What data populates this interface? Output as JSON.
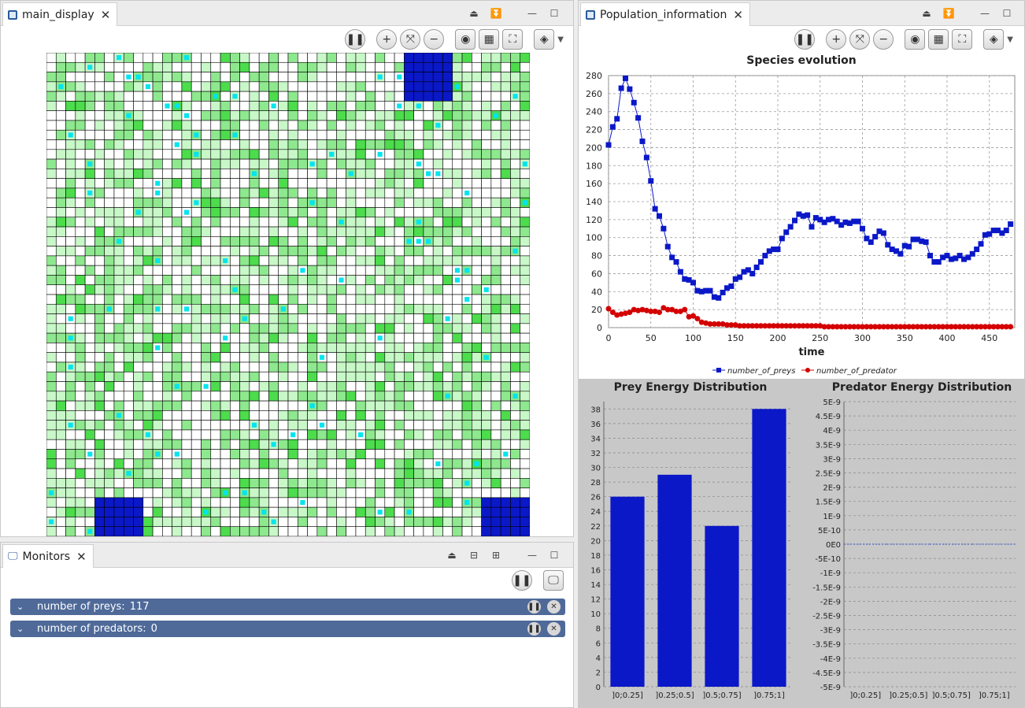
{
  "main_display": {
    "tab_label": "main_display",
    "grid": {
      "rows": 50,
      "cols": 50
    }
  },
  "population": {
    "tab_label": "Population_information"
  },
  "monitors": {
    "tab_label": "Monitors",
    "rows": [
      {
        "label": "number of preys:",
        "value": "117"
      },
      {
        "label": "number of predators:",
        "value": "0"
      }
    ]
  },
  "colors": {
    "grass_dark": "#4cdc4c",
    "grass_mid": "#8ee88e",
    "grass_light": "#c8f7c8",
    "prey": "#00e5ee",
    "predator_block": "#0a18c8",
    "prey_series": "#0a18c8",
    "predator_series": "#d40000"
  },
  "chart_data": [
    {
      "type": "line",
      "title": "Species evolution",
      "xlabel": "time",
      "ylabel": "",
      "xlim": [
        0,
        480
      ],
      "ylim": [
        0,
        280
      ],
      "xticks": [
        0,
        50,
        100,
        150,
        200,
        250,
        300,
        350,
        400,
        450
      ],
      "yticks": [
        0,
        20,
        40,
        60,
        80,
        100,
        120,
        140,
        160,
        180,
        200,
        220,
        240,
        260,
        280
      ],
      "grid": true,
      "legend": "bottom",
      "series": [
        {
          "name": "number_of_preys",
          "marker": "square",
          "x": [
            0,
            5,
            10,
            15,
            20,
            25,
            30,
            35,
            40,
            45,
            50,
            55,
            60,
            65,
            70,
            75,
            80,
            85,
            90,
            95,
            100,
            105,
            110,
            115,
            120,
            125,
            130,
            135,
            140,
            145,
            150,
            155,
            160,
            165,
            170,
            175,
            180,
            185,
            190,
            195,
            200,
            205,
            210,
            215,
            220,
            225,
            230,
            235,
            240,
            245,
            250,
            255,
            260,
            265,
            270,
            275,
            280,
            285,
            290,
            295,
            300,
            305,
            310,
            315,
            320,
            325,
            330,
            335,
            340,
            345,
            350,
            355,
            360,
            365,
            370,
            375,
            380,
            385,
            390,
            395,
            400,
            405,
            410,
            415,
            420,
            425,
            430,
            435,
            440,
            445,
            450,
            455,
            460,
            465,
            470,
            475
          ],
          "y": [
            203,
            223,
            232,
            266,
            277,
            265,
            250,
            233,
            207,
            189,
            163,
            132,
            124,
            110,
            90,
            78,
            73,
            62,
            54,
            53,
            50,
            41,
            40,
            41,
            41,
            34,
            33,
            39,
            44,
            46,
            54,
            56,
            62,
            64,
            60,
            67,
            73,
            80,
            85,
            87,
            87,
            99,
            106,
            112,
            119,
            126,
            124,
            125,
            112,
            122,
            120,
            117,
            120,
            121,
            118,
            114,
            117,
            116,
            118,
            118,
            110,
            99,
            95,
            101,
            107,
            105,
            92,
            87,
            85,
            82,
            91,
            90,
            98,
            98,
            96,
            95,
            80,
            73,
            73,
            78,
            80,
            76,
            77,
            80,
            76,
            78,
            82,
            87,
            93,
            103,
            104,
            108,
            108,
            105,
            108,
            115
          ]
        },
        {
          "name": "number_of_predator",
          "marker": "circle",
          "x": [
            0,
            5,
            10,
            15,
            20,
            25,
            30,
            35,
            40,
            45,
            50,
            55,
            60,
            65,
            70,
            75,
            80,
            85,
            90,
            95,
            100,
            105,
            110,
            115,
            120,
            125,
            130,
            135,
            140,
            145,
            150,
            155,
            160,
            165,
            170,
            175,
            180,
            185,
            190,
            195,
            200,
            205,
            210,
            215,
            220,
            225,
            230,
            235,
            240,
            245,
            250,
            255,
            260,
            265,
            270,
            275,
            280,
            285,
            290,
            295,
            300,
            305,
            310,
            315,
            320,
            325,
            330,
            335,
            340,
            345,
            350,
            355,
            360,
            365,
            370,
            375,
            380,
            385,
            390,
            395,
            400,
            405,
            410,
            415,
            420,
            425,
            430,
            435,
            440,
            445,
            450,
            455,
            460,
            465,
            470,
            475
          ],
          "y": [
            21,
            17,
            14,
            15,
            16,
            17,
            20,
            19,
            20,
            19,
            18,
            18,
            17,
            22,
            20,
            20,
            18,
            18,
            20,
            12,
            13,
            10,
            6,
            5,
            4,
            4,
            4,
            4,
            3,
            3,
            3,
            2,
            2,
            2,
            2,
            2,
            2,
            2,
            2,
            2,
            2,
            2,
            2,
            2,
            2,
            2,
            2,
            2,
            2,
            2,
            2,
            1,
            1,
            1,
            1,
            1,
            1,
            1,
            1,
            1,
            1,
            1,
            1,
            1,
            1,
            1,
            1,
            1,
            1,
            1,
            1,
            1,
            1,
            1,
            1,
            1,
            1,
            1,
            1,
            1,
            1,
            1,
            1,
            1,
            1,
            1,
            1,
            1,
            1,
            1,
            1,
            1,
            1,
            1,
            1,
            1
          ]
        }
      ]
    },
    {
      "type": "bar",
      "title": "Prey Energy Distribution",
      "categories": [
        "]0;0.25]",
        "]0.25;0.5]",
        "]0.5;0.75]",
        "]0.75;1]"
      ],
      "values": [
        26,
        29,
        22,
        38
      ],
      "ylim": [
        0,
        39
      ],
      "yticks": [
        0,
        2,
        4,
        6,
        8,
        10,
        12,
        14,
        16,
        18,
        20,
        22,
        24,
        26,
        28,
        30,
        32,
        34,
        36,
        38
      ],
      "grid": true
    },
    {
      "type": "bar",
      "title": "Predator Energy Distribution",
      "categories": [
        "]0;0.25]",
        "]0.25;0.5]",
        "]0.5;0.75]",
        "]0.75;1]"
      ],
      "values": [
        0,
        0,
        0,
        0
      ],
      "ylim": [
        -5e-09,
        5e-09
      ],
      "yticks": [
        "-5E-9",
        "-4.5E-9",
        "-4E-9",
        "-3.5E-9",
        "-3E-9",
        "-2.5E-9",
        "-2E-9",
        "-1.5E-9",
        "-1E-9",
        "-5E-10",
        "0E0",
        "5E-10",
        "1E-9",
        "1.5E-9",
        "2E-9",
        "2.5E-9",
        "3E-9",
        "3.5E-9",
        "4E-9",
        "4.5E-9",
        "5E-9"
      ],
      "grid": true
    }
  ]
}
